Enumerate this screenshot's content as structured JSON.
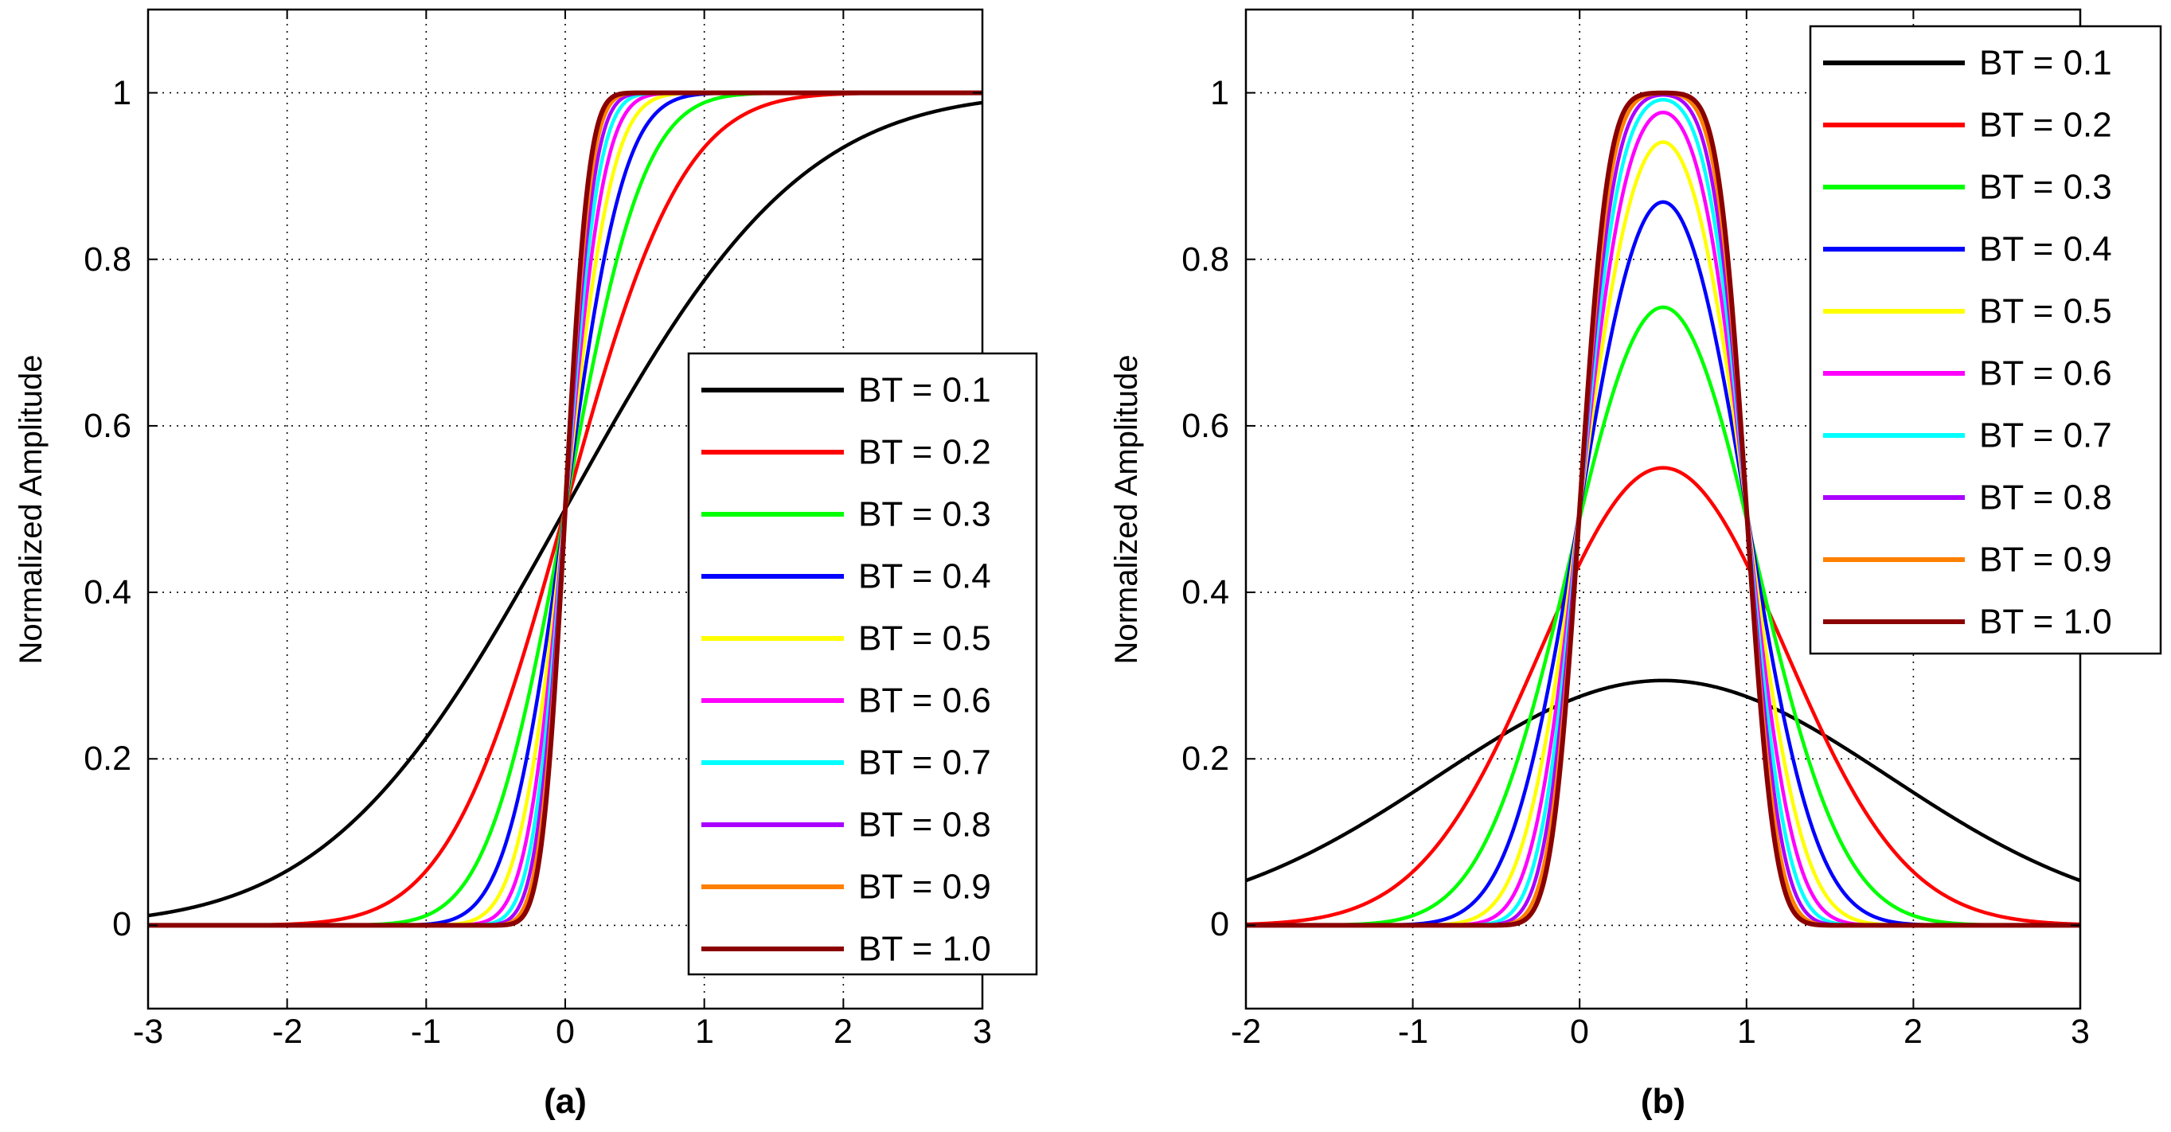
{
  "chart_data": [
    {
      "id": "a",
      "type": "line",
      "title": "",
      "xlabel": "(a)",
      "ylabel": "Normalized Amplitude",
      "xlim": [
        -3,
        3
      ],
      "ylim": [
        -0.1,
        1.1
      ],
      "xticks": [
        -3,
        -2,
        -1,
        0,
        1,
        2,
        3
      ],
      "yticks": [
        0,
        0.2,
        0.4,
        0.6,
        0.8,
        1
      ],
      "xtick_labels": [
        "-3",
        "-2",
        "-1",
        "0",
        "1",
        "2",
        "3"
      ],
      "ytick_labels": [
        "0",
        "0.2",
        "0.4",
        "0.6",
        "0.8",
        "1"
      ],
      "grid": true,
      "legend_position": "bottom-right",
      "function": "gaussian-filtered step response",
      "series": [
        {
          "name": "BT = 0.1",
          "bt": 0.1,
          "color": "#000000"
        },
        {
          "name": "BT = 0.2",
          "bt": 0.2,
          "color": "#ff0000"
        },
        {
          "name": "BT = 0.3",
          "bt": 0.3,
          "color": "#00ff00"
        },
        {
          "name": "BT = 0.4",
          "bt": 0.4,
          "color": "#0000ff"
        },
        {
          "name": "BT = 0.5",
          "bt": 0.5,
          "color": "#ffff00"
        },
        {
          "name": "BT = 0.6",
          "bt": 0.6,
          "color": "#ff00ff"
        },
        {
          "name": "BT = 0.7",
          "bt": 0.7,
          "color": "#00ffff"
        },
        {
          "name": "BT = 0.8",
          "bt": 0.8,
          "color": "#aa00ff"
        },
        {
          "name": "BT = 0.9",
          "bt": 0.9,
          "color": "#ff8000"
        },
        {
          "name": "BT = 1.0",
          "bt": 1.0,
          "color": "#8b0000"
        }
      ]
    },
    {
      "id": "b",
      "type": "line",
      "title": "",
      "xlabel": "(b)",
      "ylabel": "Normalized Amplitude",
      "xlim": [
        -2,
        3
      ],
      "ylim": [
        -0.1,
        1.1
      ],
      "xticks": [
        -2,
        -1,
        0,
        1,
        2,
        3
      ],
      "yticks": [
        0,
        0.2,
        0.4,
        0.6,
        0.8,
        1
      ],
      "xtick_labels": [
        "-2",
        "-1",
        "0",
        "1",
        "2",
        "3"
      ],
      "ytick_labels": [
        "0",
        "0.2",
        "0.4",
        "0.6",
        "0.8",
        "1"
      ],
      "grid": true,
      "legend_position": "top-right",
      "function": "gaussian-filtered rectangular pulse (width 1)",
      "series": [
        {
          "name": "BT = 0.1",
          "bt": 0.1,
          "color": "#000000"
        },
        {
          "name": "BT = 0.2",
          "bt": 0.2,
          "color": "#ff0000"
        },
        {
          "name": "BT = 0.3",
          "bt": 0.3,
          "color": "#00ff00"
        },
        {
          "name": "BT = 0.4",
          "bt": 0.4,
          "color": "#0000ff"
        },
        {
          "name": "BT = 0.5",
          "bt": 0.5,
          "color": "#ffff00"
        },
        {
          "name": "BT = 0.6",
          "bt": 0.6,
          "color": "#ff00ff"
        },
        {
          "name": "BT = 0.7",
          "bt": 0.7,
          "color": "#00ffff"
        },
        {
          "name": "BT = 0.8",
          "bt": 0.8,
          "color": "#aa00ff"
        },
        {
          "name": "BT = 0.9",
          "bt": 0.9,
          "color": "#ff8000"
        },
        {
          "name": "BT = 1.0",
          "bt": 1.0,
          "color": "#8b0000"
        }
      ]
    }
  ]
}
